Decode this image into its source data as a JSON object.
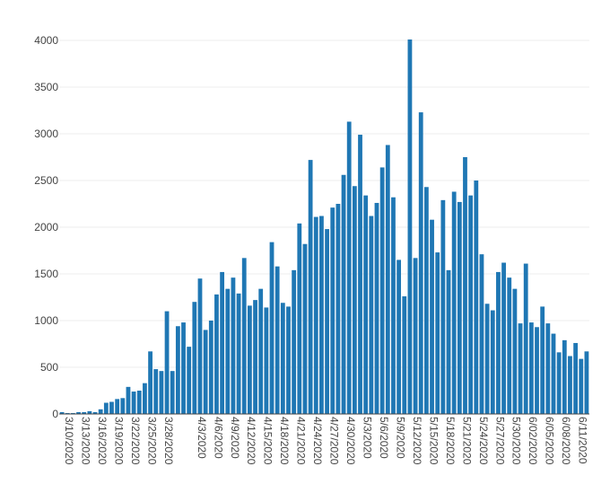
{
  "chart_data": {
    "type": "bar",
    "title": "",
    "xlabel": "",
    "ylabel": "",
    "ylim": [
      0,
      4000
    ],
    "yticks": [
      0,
      500,
      1000,
      1500,
      2000,
      2500,
      3000,
      3500,
      4000
    ],
    "grid": true,
    "bar_color": "#1f77b4",
    "x_tick_labels": [
      "3/10/2020",
      "3/13/2020",
      "3/16/2020",
      "3/19/2020",
      "3/22/2020",
      "3/25/2020",
      "3/28/2020",
      "4/3/2020",
      "4/6/2020",
      "4/9/2020",
      "4/12/2020",
      "4/15/2020",
      "4/18/2020",
      "4/21/2020",
      "4/24/2020",
      "4/27/2020",
      "4/30/2020",
      "5/3/2020",
      "5/6/2020",
      "5/9/2020",
      "5/12/2020",
      "5/15/2020",
      "5/18/2020",
      "5/21/2020",
      "5/24/2020",
      "5/27/2020",
      "5/30/2020",
      "6/02/2020",
      "6/05/2020",
      "6/08/2020",
      "6/11/2020"
    ],
    "categories": [
      "3/10/2020",
      "3/11/2020",
      "3/12/2020",
      "3/13/2020",
      "3/14/2020",
      "3/15/2020",
      "3/16/2020",
      "3/17/2020",
      "3/18/2020",
      "3/19/2020",
      "3/20/2020",
      "3/21/2020",
      "3/22/2020",
      "3/23/2020",
      "3/24/2020",
      "3/25/2020",
      "3/26/2020",
      "3/27/2020",
      "3/28/2020",
      "3/29/2020",
      "3/30/2020",
      "3/31/2020",
      "4/1/2020",
      "4/2/2020",
      "4/3/2020",
      "4/4/2020",
      "4/5/2020",
      "4/6/2020",
      "4/7/2020",
      "4/8/2020",
      "4/9/2020",
      "4/10/2020",
      "4/11/2020",
      "4/12/2020",
      "4/13/2020",
      "4/14/2020",
      "4/15/2020",
      "4/16/2020",
      "4/17/2020",
      "4/18/2020",
      "4/19/2020",
      "4/20/2020",
      "4/21/2020",
      "4/22/2020",
      "4/23/2020",
      "4/24/2020",
      "4/25/2020",
      "4/26/2020",
      "4/27/2020",
      "4/28/2020",
      "4/29/2020",
      "4/30/2020",
      "5/1/2020",
      "5/2/2020",
      "5/3/2020",
      "5/4/2020",
      "5/5/2020",
      "5/6/2020",
      "5/7/2020",
      "5/8/2020",
      "5/9/2020",
      "5/10/2020",
      "5/11/2020",
      "5/12/2020",
      "5/13/2020",
      "5/14/2020",
      "5/15/2020",
      "5/16/2020",
      "5/17/2020",
      "5/18/2020",
      "5/19/2020",
      "5/20/2020",
      "5/21/2020",
      "5/22/2020",
      "5/23/2020",
      "5/24/2020",
      "5/25/2020",
      "5/26/2020",
      "5/27/2020",
      "5/28/2020",
      "5/29/2020",
      "5/30/2020",
      "5/31/2020",
      "6/01/2020",
      "6/02/2020",
      "6/03/2020",
      "6/04/2020",
      "6/05/2020",
      "6/06/2020",
      "6/07/2020",
      "6/08/2020",
      "6/09/2020",
      "6/10/2020",
      "6/11/2020",
      "6/12/2020",
      "6/13/2020"
    ],
    "values": [
      20,
      10,
      10,
      20,
      20,
      30,
      20,
      50,
      120,
      130,
      160,
      170,
      290,
      240,
      250,
      330,
      670,
      480,
      460,
      1100,
      460,
      940,
      980,
      720,
      1200,
      1450,
      900,
      1000,
      1280,
      1520,
      1340,
      1460,
      1290,
      1670,
      1160,
      1220,
      1340,
      1140,
      1840,
      1580,
      1190,
      1150,
      1540,
      2040,
      1820,
      2720,
      2110,
      2120,
      1980,
      2210,
      2250,
      2560,
      3130,
      2440,
      2990,
      2340,
      2120,
      2260,
      2640,
      2880,
      2320,
      1650,
      1260,
      4010,
      1670,
      3230,
      2430,
      2080,
      1730,
      2290,
      1540,
      2380,
      2270,
      2750,
      2340,
      2500,
      1710,
      1180,
      1110,
      1520,
      1620,
      1460,
      1340,
      970,
      1610,
      980,
      930,
      1150,
      970,
      860,
      660,
      790,
      620,
      760,
      590,
      670
    ]
  }
}
